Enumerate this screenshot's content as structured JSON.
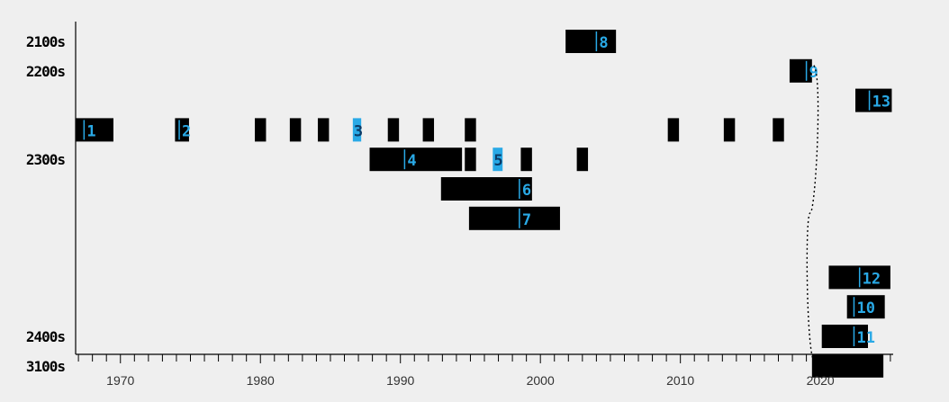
{
  "chart_data": {
    "type": "timeline",
    "title": "",
    "xlabel": "",
    "ylabel": "",
    "xlim": [
      1966.8,
      2025.2
    ],
    "x_ticks_labeled": [
      1970,
      1980,
      1990,
      2000,
      2010,
      2020
    ],
    "minor_tick_step": 1,
    "rows": [
      {
        "label": "2100s"
      },
      {
        "label": "2200s"
      },
      {
        "label": ""
      },
      {
        "label": ""
      },
      {
        "label": "2300s"
      },
      {
        "label": ""
      },
      {
        "label": ""
      },
      {
        "label": ""
      },
      {
        "label": ""
      },
      {
        "label": ""
      },
      {
        "label": "2400s"
      },
      {
        "label": "3100s"
      }
    ],
    "bars": [
      {
        "row": 0,
        "start": 2001.8,
        "end": 2005.4,
        "label": "8",
        "label_at": 2004.0
      },
      {
        "row": 1,
        "start": 2017.8,
        "end": 2019.4,
        "label": "9",
        "label_at": 2019.0
      },
      {
        "row": 2,
        "start": 2022.5,
        "end": 2025.1,
        "label": "13",
        "label_at": 2023.5
      },
      {
        "row": 3,
        "start": 1966.8,
        "end": 1969.5,
        "label": "1",
        "label_at": 1967.4
      },
      {
        "row": 3,
        "start": 1973.9,
        "end": 1974.9,
        "label": "2",
        "label_at": 1974.2
      },
      {
        "row": 3,
        "start": 1979.6,
        "end": 1980.4
      },
      {
        "row": 3,
        "start": 1982.1,
        "end": 1982.9
      },
      {
        "row": 3,
        "start": 1984.1,
        "end": 1984.9
      },
      {
        "row": 3,
        "start": 1986.6,
        "end": 1987.2,
        "label": "3",
        "label_at": 1986.6,
        "highlight": true
      },
      {
        "row": 3,
        "start": 1989.1,
        "end": 1989.9
      },
      {
        "row": 3,
        "start": 1991.6,
        "end": 1992.4
      },
      {
        "row": 3,
        "start": 1994.6,
        "end": 1995.4
      },
      {
        "row": 3,
        "start": 2009.1,
        "end": 2009.9
      },
      {
        "row": 3,
        "start": 2013.1,
        "end": 2013.9
      },
      {
        "row": 3,
        "start": 2016.6,
        "end": 2017.4
      },
      {
        "row": 4,
        "start": 1987.8,
        "end": 1994.4,
        "label": "4",
        "label_at": 1990.3
      },
      {
        "row": 4,
        "start": 1994.6,
        "end": 1995.4
      },
      {
        "row": 4,
        "start": 1996.6,
        "end": 1997.3,
        "label": "5",
        "label_at": 1996.6,
        "highlight": true
      },
      {
        "row": 4,
        "start": 1998.6,
        "end": 1999.4
      },
      {
        "row": 4,
        "start": 2002.6,
        "end": 2003.4
      },
      {
        "row": 5,
        "start": 1992.9,
        "end": 1999.4,
        "label": "6",
        "label_at": 1998.5
      },
      {
        "row": 6,
        "start": 1994.9,
        "end": 2001.4,
        "label": "7",
        "label_at": 1998.5
      },
      {
        "row": 8,
        "start": 2020.6,
        "end": 2025.0,
        "label": "12",
        "label_at": 2022.8
      },
      {
        "row": 9,
        "start": 2021.9,
        "end": 2024.6,
        "label": "10",
        "label_at": 2022.4
      },
      {
        "row": 10,
        "start": 2020.1,
        "end": 2023.4,
        "label": "11",
        "label_at": 2022.4
      },
      {
        "row": 11,
        "start": 2019.4,
        "end": 2024.5
      }
    ],
    "connectors": [
      {
        "from_row": 1,
        "from_x": 2019.4,
        "to_row": 11,
        "to_x": 2019.4,
        "style": "dotted"
      }
    ],
    "colors": {
      "background": "#efefef",
      "bar": "#000000",
      "label": "#29a9e6",
      "highlight": "#29a9e6",
      "axis": "#000000"
    }
  }
}
